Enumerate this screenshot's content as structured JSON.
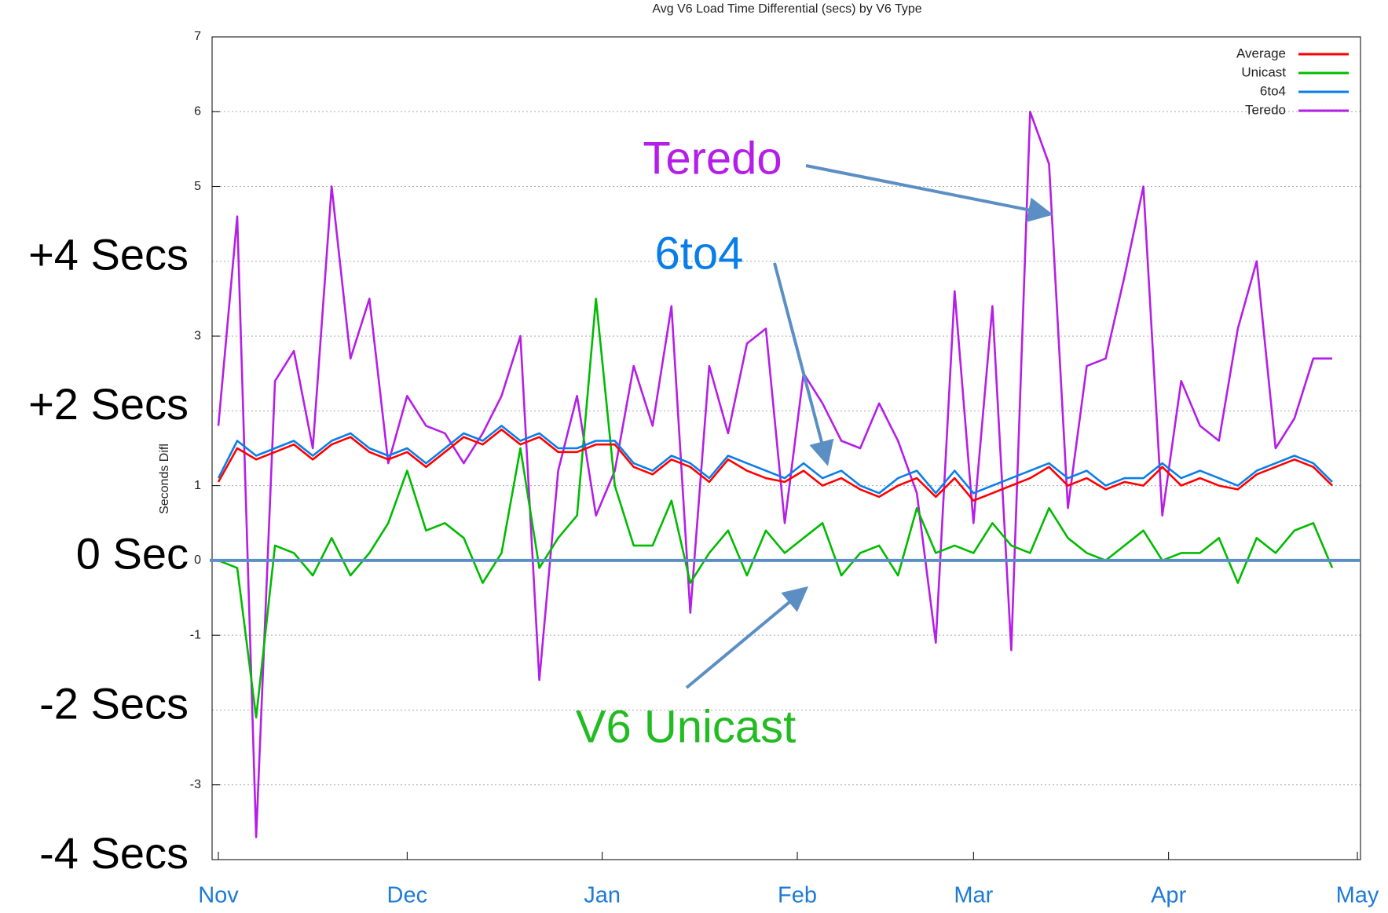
{
  "chart_data": {
    "type": "line",
    "title": "Avg V6 Load Time Differential (secs) by V6 Type",
    "y_label": "Seconds Difl",
    "x": [
      0,
      3,
      6,
      9,
      12,
      15,
      18,
      21,
      24,
      27,
      30,
      33,
      36,
      39,
      42,
      45,
      48,
      51,
      54,
      57,
      60,
      63,
      66,
      69,
      72,
      75,
      78,
      81,
      84,
      87,
      90,
      93,
      96,
      99,
      102,
      105,
      108,
      111,
      114,
      117,
      120,
      123,
      126,
      129,
      132,
      135,
      138,
      141,
      144,
      147,
      150,
      153,
      156,
      159,
      162,
      165,
      168,
      171,
      174,
      177
    ],
    "xlim": [
      -1,
      181.5
    ],
    "xticks": [
      {
        "value": 0,
        "label": "Nov"
      },
      {
        "value": 30,
        "label": "Dec"
      },
      {
        "value": 61,
        "label": "Jan"
      },
      {
        "value": 92,
        "label": "Feb"
      },
      {
        "value": 120,
        "label": "Mar"
      },
      {
        "value": 151,
        "label": "Apr"
      },
      {
        "value": 181,
        "label": "May"
      }
    ],
    "ylim": [
      -4,
      7
    ],
    "yticks": [
      -3,
      -1,
      0,
      1,
      3,
      5,
      6,
      7
    ],
    "side_labels": [
      {
        "value": 4,
        "label": "+4 Secs"
      },
      {
        "value": 2,
        "label": "+2 Secs"
      },
      {
        "value": 0,
        "label": "0 Sec"
      },
      {
        "value": -2,
        "label": "-2 Secs"
      },
      {
        "value": -4,
        "label": "-4 Secs"
      }
    ],
    "grid": true,
    "legend": "upper right",
    "series": [
      {
        "name": "Average",
        "color": "#ff0000",
        "values": [
          1.05,
          1.5,
          1.35,
          1.45,
          1.55,
          1.35,
          1.55,
          1.65,
          1.45,
          1.35,
          1.45,
          1.25,
          1.45,
          1.65,
          1.55,
          1.75,
          1.55,
          1.65,
          1.45,
          1.45,
          1.55,
          1.55,
          1.25,
          1.15,
          1.35,
          1.25,
          1.05,
          1.35,
          1.2,
          1.1,
          1.05,
          1.2,
          1.0,
          1.1,
          0.95,
          0.85,
          1.0,
          1.1,
          0.85,
          1.1,
          0.8,
          0.9,
          1.0,
          1.1,
          1.25,
          1.0,
          1.1,
          0.95,
          1.05,
          1.0,
          1.25,
          1.0,
          1.1,
          1.0,
          0.95,
          1.15,
          1.25,
          1.35,
          1.25,
          1.0
        ]
      },
      {
        "name": "Unicast",
        "color": "#00bb00",
        "values": [
          0,
          -0.1,
          -2.1,
          0.2,
          0.1,
          -0.2,
          0.3,
          -0.2,
          0.1,
          0.5,
          1.2,
          0.4,
          0.5,
          0.3,
          -0.3,
          0.1,
          1.5,
          -0.1,
          0.3,
          0.6,
          3.5,
          1.0,
          0.2,
          0.2,
          0.8,
          -0.3,
          0.1,
          0.4,
          -0.2,
          0.4,
          0.1,
          0.3,
          0.5,
          -0.2,
          0.1,
          0.2,
          -0.2,
          0.7,
          0.1,
          0.2,
          0.1,
          0.5,
          0.2,
          0.1,
          0.7,
          0.3,
          0.1,
          0.0,
          0.2,
          0.4,
          0.0,
          0.1,
          0.1,
          0.3,
          -0.3,
          0.3,
          0.1,
          0.4,
          0.5,
          -0.1
        ]
      },
      {
        "name": "6to4",
        "color": "#0a7ee8",
        "values": [
          1.1,
          1.6,
          1.4,
          1.5,
          1.6,
          1.4,
          1.6,
          1.7,
          1.5,
          1.4,
          1.5,
          1.3,
          1.5,
          1.7,
          1.6,
          1.8,
          1.6,
          1.7,
          1.5,
          1.5,
          1.6,
          1.6,
          1.3,
          1.2,
          1.4,
          1.3,
          1.1,
          1.4,
          1.3,
          1.2,
          1.1,
          1.3,
          1.1,
          1.2,
          1.0,
          0.9,
          1.1,
          1.2,
          0.9,
          1.2,
          0.9,
          1.0,
          1.1,
          1.2,
          1.3,
          1.1,
          1.2,
          1.0,
          1.1,
          1.1,
          1.3,
          1.1,
          1.2,
          1.1,
          1.0,
          1.2,
          1.3,
          1.4,
          1.3,
          1.05
        ]
      },
      {
        "name": "Teredo",
        "color": "#b41ee8",
        "values": [
          1.8,
          4.6,
          -3.7,
          2.4,
          2.8,
          1.5,
          5.0,
          2.7,
          3.5,
          1.3,
          2.2,
          1.8,
          1.7,
          1.3,
          1.7,
          2.2,
          3.0,
          -1.6,
          1.2,
          2.2,
          0.6,
          1.2,
          2.6,
          1.8,
          3.4,
          -0.7,
          2.6,
          1.7,
          2.9,
          3.1,
          0.5,
          2.5,
          2.1,
          1.6,
          1.5,
          2.1,
          1.6,
          0.9,
          -1.1,
          3.6,
          0.5,
          3.4,
          -1.2,
          6.0,
          5.3,
          0.7,
          2.6,
          2.7,
          3.8,
          5.0,
          0.6,
          2.4,
          1.8,
          1.6,
          3.1,
          4.0,
          1.5,
          1.9,
          2.7,
          2.7
        ]
      }
    ],
    "annotations": [
      {
        "text": "Teredo",
        "color": "#b41ee8"
      },
      {
        "text": "6to4",
        "color": "#0a7ee8"
      },
      {
        "text": "V6 Unicast",
        "color": "#22bb22"
      }
    ]
  }
}
